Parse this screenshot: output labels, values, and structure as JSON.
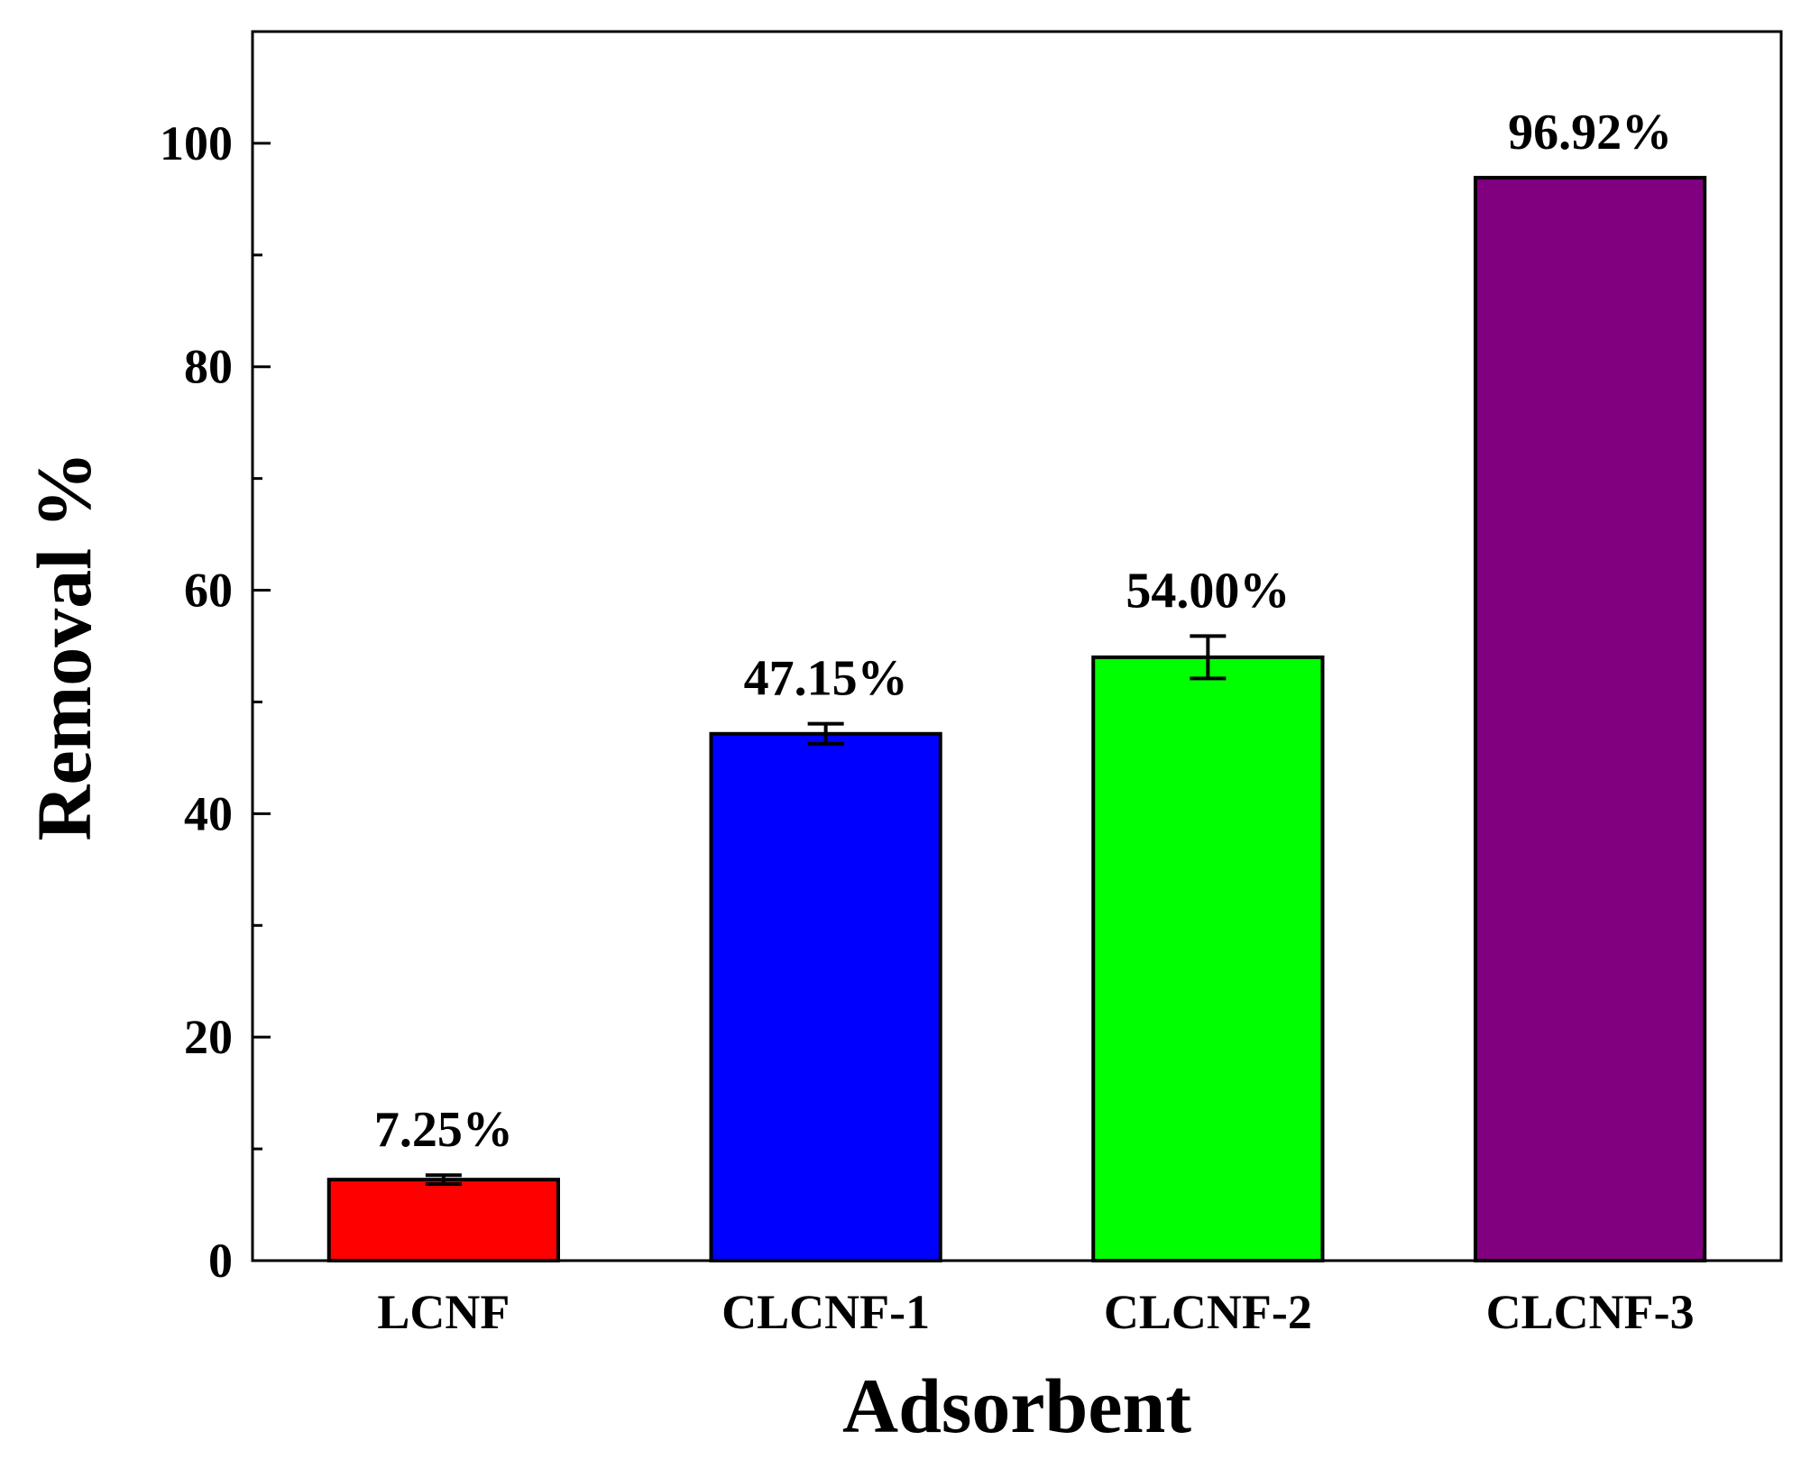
{
  "chart_data": {
    "type": "bar",
    "title": "",
    "xlabel": "Adsorbent",
    "ylabel": "Removal %",
    "ylim": [
      0,
      110
    ],
    "yticks": [
      0,
      20,
      40,
      60,
      80,
      100
    ],
    "grid": false,
    "categories": [
      "LCNF",
      "CLCNF-1",
      "CLCNF-2",
      "CLCNF-3"
    ],
    "values": [
      7.25,
      47.15,
      54.0,
      96.92
    ],
    "errors": [
      0.4,
      0.9,
      1.9,
      0
    ],
    "data_labels": [
      "7.25%",
      "47.15%",
      "54.00%",
      "96.92%"
    ],
    "colors": [
      "#ff0000",
      "#0000ff",
      "#00ff00",
      "#800080"
    ]
  }
}
